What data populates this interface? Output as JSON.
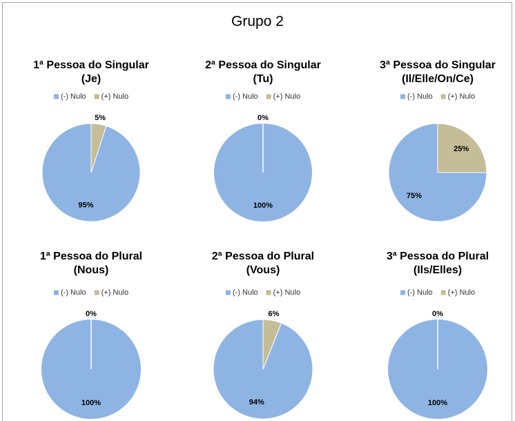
{
  "title": "Grupo 2",
  "chart_data": [
    {
      "type": "pie",
      "title": [
        "1ª Pessoa do Singular",
        "(Je)"
      ],
      "categories": [
        "(-) Nulo",
        "(+) Nulo"
      ],
      "values": [
        95,
        5
      ],
      "value_labels": [
        "95%",
        "5%"
      ],
      "colors": [
        "#8eb4e3",
        "#c4bd97"
      ]
    },
    {
      "type": "pie",
      "title": [
        "2ª Pessoa do Singular",
        "(Tu)"
      ],
      "categories": [
        "(-) Nulo",
        "(+) Nulo"
      ],
      "values": [
        100,
        0
      ],
      "value_labels": [
        "100%",
        "0%"
      ],
      "colors": [
        "#8eb4e3",
        "#c4bd97"
      ]
    },
    {
      "type": "pie",
      "title": [
        "3ª Pessoa do Singular",
        "(Il/Elle/On/Ce)"
      ],
      "categories": [
        "(-) Nulo",
        "(+) Nulo"
      ],
      "values": [
        75,
        25
      ],
      "value_labels": [
        "75%",
        "25%"
      ],
      "colors": [
        "#8eb4e3",
        "#c4bd97"
      ]
    },
    {
      "type": "pie",
      "title": [
        "1ª Pessoa do Plural",
        "(Nous)"
      ],
      "categories": [
        "(-) Nulo",
        "(+) Nulo"
      ],
      "values": [
        100,
        0
      ],
      "value_labels": [
        "100%",
        "0%"
      ],
      "colors": [
        "#8eb4e3",
        "#c4bd97"
      ]
    },
    {
      "type": "pie",
      "title": [
        "2ª Pessoa do Plural",
        "(Vous)"
      ],
      "categories": [
        "(-) Nulo",
        "(+) Nulo"
      ],
      "values": [
        94,
        6
      ],
      "value_labels": [
        "94%",
        "6%"
      ],
      "colors": [
        "#8eb4e3",
        "#c4bd97"
      ]
    },
    {
      "type": "pie",
      "title": [
        "3ª Pessoa do Plural",
        "(Ils/Elles)"
      ],
      "categories": [
        "(-) Nulo",
        "(+) Nulo"
      ],
      "values": [
        100,
        0
      ],
      "value_labels": [
        "100%",
        "0%"
      ],
      "colors": [
        "#8eb4e3",
        "#c4bd97"
      ]
    }
  ]
}
